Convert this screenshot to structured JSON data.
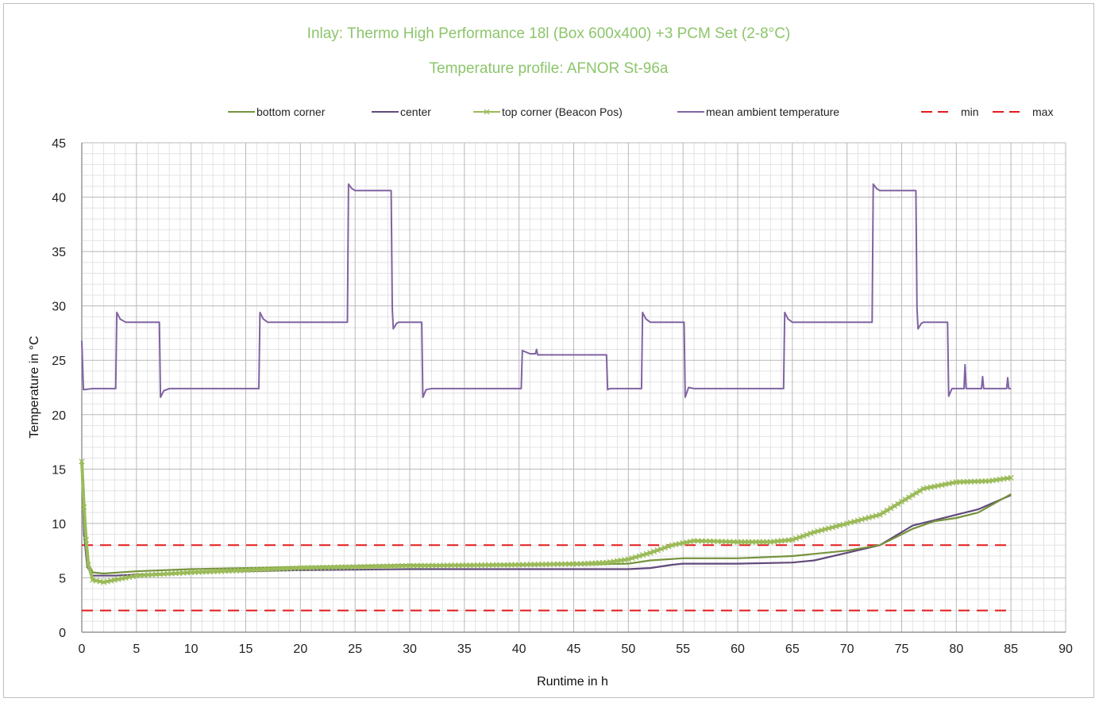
{
  "chart_data": {
    "type": "line",
    "title": "Inlay: Thermo High Performance 18l (Box 600x400) +3 PCM Set (2-8°C)",
    "subtitle": "Temperature profile: AFNOR St-96a",
    "xlabel": "Runtime in h",
    "ylabel": "Temperature in  °C",
    "xlim": [
      0,
      90
    ],
    "ylim": [
      0,
      45
    ],
    "x_ticks": [
      0,
      5,
      10,
      15,
      20,
      25,
      30,
      35,
      40,
      45,
      50,
      55,
      60,
      65,
      70,
      75,
      80,
      85,
      90
    ],
    "y_ticks": [
      0,
      5,
      10,
      15,
      20,
      25,
      30,
      35,
      40,
      45
    ],
    "grid": "major and minor",
    "legend_position": "top",
    "series": [
      {
        "name": "bottom corner",
        "color": "#76933c",
        "style": "solid",
        "points": [
          [
            0,
            15
          ],
          [
            0.2,
            10
          ],
          [
            0.5,
            6.5
          ],
          [
            1,
            5.5
          ],
          [
            2,
            5.4
          ],
          [
            5,
            5.6
          ],
          [
            10,
            5.8
          ],
          [
            20,
            6.0
          ],
          [
            30,
            6.2
          ],
          [
            40,
            6.2
          ],
          [
            45,
            6.2
          ],
          [
            50,
            6.3
          ],
          [
            52,
            6.6
          ],
          [
            55,
            6.8
          ],
          [
            60,
            6.8
          ],
          [
            65,
            7.0
          ],
          [
            70,
            7.5
          ],
          [
            73,
            8.0
          ],
          [
            76,
            9.5
          ],
          [
            78,
            10.2
          ],
          [
            80,
            10.5
          ],
          [
            82,
            11.0
          ],
          [
            85,
            12.7
          ]
        ]
      },
      {
        "name": "center",
        "color": "#604a7b",
        "style": "solid",
        "points": [
          [
            0,
            15
          ],
          [
            0.2,
            9
          ],
          [
            0.5,
            6
          ],
          [
            1,
            5.2
          ],
          [
            3,
            5.2
          ],
          [
            5,
            5.3
          ],
          [
            10,
            5.5
          ],
          [
            20,
            5.7
          ],
          [
            30,
            5.8
          ],
          [
            40,
            5.8
          ],
          [
            45,
            5.8
          ],
          [
            50,
            5.8
          ],
          [
            52,
            5.9
          ],
          [
            54,
            6.2
          ],
          [
            55,
            6.3
          ],
          [
            60,
            6.3
          ],
          [
            65,
            6.4
          ],
          [
            67,
            6.6
          ],
          [
            70,
            7.3
          ],
          [
            73,
            8.0
          ],
          [
            76,
            9.8
          ],
          [
            78,
            10.3
          ],
          [
            80,
            10.8
          ],
          [
            82,
            11.3
          ],
          [
            85,
            12.6
          ]
        ]
      },
      {
        "name": "top corner (Beacon Pos)",
        "color": "#9bbb59",
        "style": "solid-x-markers",
        "points": [
          [
            0,
            15.7
          ],
          [
            0.2,
            11.5
          ],
          [
            0.4,
            8.5
          ],
          [
            0.6,
            6.2
          ],
          [
            1,
            4.8
          ],
          [
            2,
            4.6
          ],
          [
            3,
            4.8
          ],
          [
            5,
            5.2
          ],
          [
            10,
            5.5
          ],
          [
            20,
            5.9
          ],
          [
            30,
            6.1
          ],
          [
            40,
            6.2
          ],
          [
            46,
            6.3
          ],
          [
            48,
            6.4
          ],
          [
            50,
            6.7
          ],
          [
            52,
            7.3
          ],
          [
            54,
            8.0
          ],
          [
            56,
            8.4
          ],
          [
            60,
            8.3
          ],
          [
            63,
            8.3
          ],
          [
            65,
            8.5
          ],
          [
            67,
            9.2
          ],
          [
            70,
            10.0
          ],
          [
            73,
            10.8
          ],
          [
            75,
            12.0
          ],
          [
            77,
            13.2
          ],
          [
            80,
            13.8
          ],
          [
            83,
            13.9
          ],
          [
            85,
            14.2
          ]
        ]
      },
      {
        "name": "mean ambient temperature",
        "color": "#8064a2",
        "style": "solid",
        "points": [
          [
            0,
            26.8
          ],
          [
            0.15,
            22.3
          ],
          [
            1,
            22.4
          ],
          [
            3.1,
            22.4
          ],
          [
            3.2,
            29.4
          ],
          [
            3.5,
            28.8
          ],
          [
            4,
            28.5
          ],
          [
            7.1,
            28.5
          ],
          [
            7.2,
            21.6
          ],
          [
            7.5,
            22.2
          ],
          [
            8,
            22.4
          ],
          [
            16.2,
            22.4
          ],
          [
            16.3,
            29.4
          ],
          [
            16.6,
            28.8
          ],
          [
            17,
            28.5
          ],
          [
            24.3,
            28.5
          ],
          [
            24.4,
            41.2
          ],
          [
            24.7,
            40.8
          ],
          [
            25,
            40.6
          ],
          [
            28.3,
            40.6
          ],
          [
            28.4,
            29.8
          ],
          [
            28.5,
            27.9
          ],
          [
            28.8,
            28.4
          ],
          [
            29,
            28.5
          ],
          [
            31.1,
            28.5
          ],
          [
            31.2,
            21.6
          ],
          [
            31.5,
            22.3
          ],
          [
            32,
            22.4
          ],
          [
            40.2,
            22.4
          ],
          [
            40.3,
            25.9
          ],
          [
            41,
            25.6
          ],
          [
            41.5,
            25.6
          ],
          [
            41.6,
            26.0
          ],
          [
            41.7,
            25.5
          ],
          [
            48,
            25.5
          ],
          [
            48.1,
            22.3
          ],
          [
            48.3,
            22.4
          ],
          [
            51.2,
            22.4
          ],
          [
            51.3,
            29.4
          ],
          [
            51.6,
            28.8
          ],
          [
            52,
            28.5
          ],
          [
            55.1,
            28.5
          ],
          [
            55.2,
            21.6
          ],
          [
            55.5,
            22.5
          ],
          [
            56,
            22.4
          ],
          [
            64.2,
            22.4
          ],
          [
            64.3,
            29.4
          ],
          [
            64.6,
            28.8
          ],
          [
            65,
            28.5
          ],
          [
            72.3,
            28.5
          ],
          [
            72.4,
            41.2
          ],
          [
            72.7,
            40.8
          ],
          [
            73,
            40.6
          ],
          [
            76.3,
            40.6
          ],
          [
            76.4,
            29.8
          ],
          [
            76.5,
            27.9
          ],
          [
            76.8,
            28.4
          ],
          [
            77,
            28.5
          ],
          [
            79.2,
            28.5
          ],
          [
            79.3,
            21.7
          ],
          [
            79.6,
            22.4
          ],
          [
            80.7,
            22.4
          ],
          [
            80.8,
            24.6
          ],
          [
            80.9,
            22.4
          ],
          [
            82.3,
            22.4
          ],
          [
            82.4,
            23.5
          ],
          [
            82.5,
            22.4
          ],
          [
            84.6,
            22.4
          ],
          [
            84.7,
            23.4
          ],
          [
            84.8,
            22.4
          ],
          [
            85,
            22.4
          ]
        ]
      },
      {
        "name": "min",
        "color": "#e31a1c",
        "style": "dashed",
        "points": [
          [
            0,
            2
          ],
          [
            85,
            2
          ]
        ]
      },
      {
        "name": "max",
        "color": "#e31a1c",
        "style": "dashed",
        "points": [
          [
            0,
            8
          ],
          [
            85,
            8
          ]
        ]
      }
    ]
  }
}
